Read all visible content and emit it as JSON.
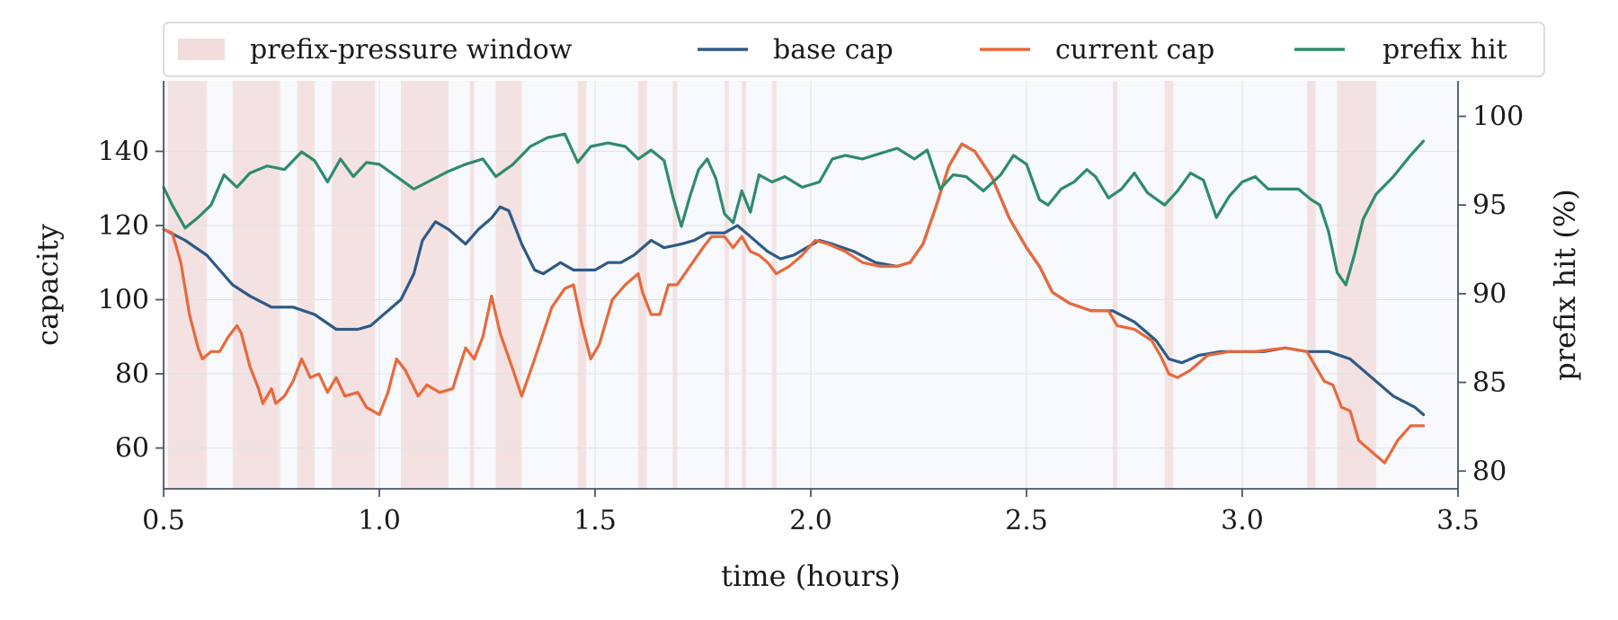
{
  "chart_data": {
    "type": "line",
    "xlabel": "time (hours)",
    "ylabel_left": "capacity",
    "ylabel_right": "prefix hit (%)",
    "xlim": [
      0.5,
      3.5
    ],
    "ylim_left": [
      49,
      159
    ],
    "ylim_right": [
      79,
      102
    ],
    "x_ticks": [
      "0.5",
      "1.0",
      "1.5",
      "2.0",
      "2.5",
      "3.0",
      "3.5"
    ],
    "y_left_ticks": [
      "60",
      "80",
      "100",
      "120",
      "140"
    ],
    "y_right_ticks": [
      "80",
      "85",
      "90",
      "95",
      "100"
    ],
    "grid": true,
    "legend_position": "top",
    "background": "#f7f9fc",
    "windows_label": "prefix-pressure window",
    "window_color": "#f2dcdc",
    "windows": [
      [
        0.51,
        0.6
      ],
      [
        0.66,
        0.77
      ],
      [
        0.81,
        0.85
      ],
      [
        0.89,
        0.99
      ],
      [
        1.05,
        1.16
      ],
      [
        1.21,
        1.22
      ],
      [
        1.27,
        1.33
      ],
      [
        1.46,
        1.48
      ],
      [
        1.6,
        1.62
      ],
      [
        1.68,
        1.69
      ],
      [
        1.8,
        1.81
      ],
      [
        1.84,
        1.85
      ],
      [
        1.91,
        1.92
      ],
      [
        2.7,
        2.71
      ],
      [
        2.82,
        2.84
      ],
      [
        3.15,
        3.17
      ],
      [
        3.22,
        3.31
      ]
    ],
    "series": [
      {
        "name": "base cap",
        "axis": "left",
        "color": "#2e5a87",
        "points": [
          [
            0.5,
            119
          ],
          [
            0.55,
            116
          ],
          [
            0.6,
            112
          ],
          [
            0.63,
            108
          ],
          [
            0.66,
            104
          ],
          [
            0.7,
            101
          ],
          [
            0.75,
            98
          ],
          [
            0.8,
            98
          ],
          [
            0.85,
            96
          ],
          [
            0.9,
            92
          ],
          [
            0.95,
            92
          ],
          [
            0.98,
            93
          ],
          [
            1.0,
            95
          ],
          [
            1.05,
            100
          ],
          [
            1.08,
            107
          ],
          [
            1.1,
            116
          ],
          [
            1.13,
            121
          ],
          [
            1.16,
            119
          ],
          [
            1.2,
            115
          ],
          [
            1.23,
            119
          ],
          [
            1.26,
            122
          ],
          [
            1.28,
            125
          ],
          [
            1.3,
            124
          ],
          [
            1.33,
            115
          ],
          [
            1.36,
            108
          ],
          [
            1.38,
            107
          ],
          [
            1.42,
            110
          ],
          [
            1.45,
            108
          ],
          [
            1.48,
            108
          ],
          [
            1.5,
            108
          ],
          [
            1.53,
            110
          ],
          [
            1.56,
            110
          ],
          [
            1.59,
            112
          ],
          [
            1.63,
            116
          ],
          [
            1.66,
            114
          ],
          [
            1.7,
            115
          ],
          [
            1.73,
            116
          ],
          [
            1.76,
            118
          ],
          [
            1.8,
            118
          ],
          [
            1.83,
            120
          ],
          [
            1.86,
            117
          ],
          [
            1.9,
            113
          ],
          [
            1.93,
            111
          ],
          [
            1.96,
            112
          ],
          [
            1.99,
            114
          ],
          [
            2.02,
            116
          ],
          [
            2.05,
            115
          ],
          [
            2.1,
            113
          ],
          [
            2.15,
            110
          ],
          [
            2.2,
            109
          ],
          [
            2.23,
            110
          ],
          [
            2.26,
            115
          ],
          [
            2.29,
            125
          ],
          [
            2.32,
            136
          ],
          [
            2.35,
            142
          ],
          [
            2.38,
            140
          ],
          [
            2.42,
            133
          ],
          [
            2.46,
            122
          ],
          [
            2.5,
            114
          ],
          [
            2.53,
            109
          ],
          [
            2.56,
            102
          ],
          [
            2.6,
            99
          ],
          [
            2.65,
            97
          ],
          [
            2.7,
            97
          ],
          [
            2.75,
            94
          ],
          [
            2.8,
            89
          ],
          [
            2.83,
            84
          ],
          [
            2.86,
            83
          ],
          [
            2.9,
            85
          ],
          [
            2.95,
            86
          ],
          [
            3.0,
            86
          ],
          [
            3.05,
            86
          ],
          [
            3.1,
            87
          ],
          [
            3.15,
            86
          ],
          [
            3.2,
            86
          ],
          [
            3.25,
            84
          ],
          [
            3.3,
            79
          ],
          [
            3.35,
            74
          ],
          [
            3.4,
            71
          ],
          [
            3.42,
            69
          ]
        ]
      },
      {
        "name": "current cap",
        "axis": "left",
        "color": "#e8693a",
        "points": [
          [
            0.5,
            119
          ],
          [
            0.52,
            118
          ],
          [
            0.54,
            110
          ],
          [
            0.56,
            96
          ],
          [
            0.58,
            87
          ],
          [
            0.59,
            84
          ],
          [
            0.61,
            86
          ],
          [
            0.63,
            86
          ],
          [
            0.65,
            90
          ],
          [
            0.67,
            93
          ],
          [
            0.68,
            91
          ],
          [
            0.7,
            82
          ],
          [
            0.72,
            76
          ],
          [
            0.73,
            72
          ],
          [
            0.75,
            76
          ],
          [
            0.76,
            72
          ],
          [
            0.78,
            74
          ],
          [
            0.8,
            78
          ],
          [
            0.82,
            84
          ],
          [
            0.84,
            79
          ],
          [
            0.86,
            80
          ],
          [
            0.88,
            75
          ],
          [
            0.9,
            79
          ],
          [
            0.92,
            74
          ],
          [
            0.95,
            75
          ],
          [
            0.97,
            71
          ],
          [
            1.0,
            69
          ],
          [
            1.02,
            75
          ],
          [
            1.04,
            84
          ],
          [
            1.06,
            81
          ],
          [
            1.09,
            74
          ],
          [
            1.11,
            77
          ],
          [
            1.14,
            75
          ],
          [
            1.17,
            76
          ],
          [
            1.2,
            87
          ],
          [
            1.22,
            84
          ],
          [
            1.24,
            90
          ],
          [
            1.26,
            101
          ],
          [
            1.28,
            91
          ],
          [
            1.31,
            81
          ],
          [
            1.33,
            74
          ],
          [
            1.36,
            84
          ],
          [
            1.4,
            98
          ],
          [
            1.43,
            103
          ],
          [
            1.45,
            104
          ],
          [
            1.47,
            93
          ],
          [
            1.49,
            84
          ],
          [
            1.51,
            88
          ],
          [
            1.54,
            100
          ],
          [
            1.57,
            104
          ],
          [
            1.6,
            107
          ],
          [
            1.61,
            102
          ],
          [
            1.63,
            96
          ],
          [
            1.65,
            96
          ],
          [
            1.67,
            104
          ],
          [
            1.69,
            104
          ],
          [
            1.72,
            109
          ],
          [
            1.75,
            114
          ],
          [
            1.77,
            117
          ],
          [
            1.8,
            117
          ],
          [
            1.82,
            114
          ],
          [
            1.84,
            117
          ],
          [
            1.86,
            113
          ],
          [
            1.88,
            112
          ],
          [
            1.9,
            110
          ],
          [
            1.92,
            107
          ],
          [
            1.95,
            109
          ],
          [
            1.98,
            112
          ],
          [
            2.01,
            116
          ],
          [
            2.04,
            115
          ],
          [
            2.08,
            113
          ],
          [
            2.12,
            110
          ],
          [
            2.16,
            109
          ],
          [
            2.2,
            109
          ],
          [
            2.23,
            110
          ],
          [
            2.26,
            115
          ],
          [
            2.29,
            125
          ],
          [
            2.32,
            136
          ],
          [
            2.35,
            142
          ],
          [
            2.38,
            140
          ],
          [
            2.42,
            133
          ],
          [
            2.46,
            122
          ],
          [
            2.5,
            114
          ],
          [
            2.53,
            109
          ],
          [
            2.56,
            102
          ],
          [
            2.6,
            99
          ],
          [
            2.65,
            97
          ],
          [
            2.69,
            97
          ],
          [
            2.71,
            93
          ],
          [
            2.75,
            92
          ],
          [
            2.79,
            89
          ],
          [
            2.81,
            85
          ],
          [
            2.83,
            80
          ],
          [
            2.85,
            79
          ],
          [
            2.88,
            81
          ],
          [
            2.92,
            85
          ],
          [
            2.97,
            86
          ],
          [
            3.03,
            86
          ],
          [
            3.1,
            87
          ],
          [
            3.15,
            86
          ],
          [
            3.17,
            82
          ],
          [
            3.19,
            78
          ],
          [
            3.21,
            77
          ],
          [
            3.23,
            71
          ],
          [
            3.25,
            70
          ],
          [
            3.27,
            62
          ],
          [
            3.29,
            60
          ],
          [
            3.31,
            58
          ],
          [
            3.33,
            56
          ],
          [
            3.36,
            62
          ],
          [
            3.39,
            66
          ],
          [
            3.42,
            66
          ]
        ]
      },
      {
        "name": "prefix hit",
        "axis": "right",
        "color": "#2e8b6e",
        "points": [
          [
            0.5,
            96.0
          ],
          [
            0.52,
            95.0
          ],
          [
            0.55,
            93.7
          ],
          [
            0.58,
            94.3
          ],
          [
            0.61,
            95.0
          ],
          [
            0.64,
            96.7
          ],
          [
            0.67,
            96.0
          ],
          [
            0.7,
            96.8
          ],
          [
            0.74,
            97.2
          ],
          [
            0.78,
            97.0
          ],
          [
            0.82,
            98.0
          ],
          [
            0.85,
            97.5
          ],
          [
            0.88,
            96.3
          ],
          [
            0.91,
            97.6
          ],
          [
            0.94,
            96.6
          ],
          [
            0.97,
            97.4
          ],
          [
            1.0,
            97.3
          ],
          [
            1.04,
            96.6
          ],
          [
            1.08,
            95.9
          ],
          [
            1.12,
            96.4
          ],
          [
            1.16,
            96.9
          ],
          [
            1.2,
            97.3
          ],
          [
            1.24,
            97.6
          ],
          [
            1.27,
            96.6
          ],
          [
            1.31,
            97.3
          ],
          [
            1.35,
            98.3
          ],
          [
            1.39,
            98.8
          ],
          [
            1.43,
            99.0
          ],
          [
            1.46,
            97.4
          ],
          [
            1.49,
            98.3
          ],
          [
            1.53,
            98.5
          ],
          [
            1.57,
            98.3
          ],
          [
            1.6,
            97.6
          ],
          [
            1.63,
            98.1
          ],
          [
            1.66,
            97.5
          ],
          [
            1.68,
            95.5
          ],
          [
            1.7,
            93.8
          ],
          [
            1.72,
            95.5
          ],
          [
            1.74,
            97.0
          ],
          [
            1.76,
            97.6
          ],
          [
            1.78,
            96.5
          ],
          [
            1.8,
            94.5
          ],
          [
            1.82,
            94.0
          ],
          [
            1.84,
            95.8
          ],
          [
            1.86,
            94.6
          ],
          [
            1.88,
            96.7
          ],
          [
            1.91,
            96.3
          ],
          [
            1.94,
            96.6
          ],
          [
            1.98,
            96.0
          ],
          [
            2.02,
            96.3
          ],
          [
            2.05,
            97.6
          ],
          [
            2.08,
            97.8
          ],
          [
            2.12,
            97.6
          ],
          [
            2.16,
            97.9
          ],
          [
            2.2,
            98.2
          ],
          [
            2.24,
            97.6
          ],
          [
            2.27,
            98.1
          ],
          [
            2.3,
            95.9
          ],
          [
            2.33,
            96.7
          ],
          [
            2.36,
            96.6
          ],
          [
            2.4,
            95.8
          ],
          [
            2.44,
            96.7
          ],
          [
            2.47,
            97.8
          ],
          [
            2.5,
            97.3
          ],
          [
            2.53,
            95.3
          ],
          [
            2.55,
            95.0
          ],
          [
            2.58,
            95.9
          ],
          [
            2.61,
            96.3
          ],
          [
            2.64,
            97.0
          ],
          [
            2.66,
            96.6
          ],
          [
            2.69,
            95.4
          ],
          [
            2.72,
            95.9
          ],
          [
            2.75,
            96.8
          ],
          [
            2.78,
            95.7
          ],
          [
            2.82,
            95.0
          ],
          [
            2.85,
            95.8
          ],
          [
            2.88,
            96.8
          ],
          [
            2.91,
            96.4
          ],
          [
            2.94,
            94.3
          ],
          [
            2.97,
            95.5
          ],
          [
            3.0,
            96.3
          ],
          [
            3.03,
            96.6
          ],
          [
            3.06,
            95.9
          ],
          [
            3.1,
            95.9
          ],
          [
            3.13,
            95.9
          ],
          [
            3.16,
            95.3
          ],
          [
            3.18,
            95.0
          ],
          [
            3.2,
            93.5
          ],
          [
            3.22,
            91.2
          ],
          [
            3.24,
            90.5
          ],
          [
            3.26,
            92.2
          ],
          [
            3.28,
            94.2
          ],
          [
            3.31,
            95.6
          ],
          [
            3.35,
            96.6
          ],
          [
            3.39,
            97.8
          ],
          [
            3.42,
            98.6
          ]
        ]
      }
    ]
  }
}
